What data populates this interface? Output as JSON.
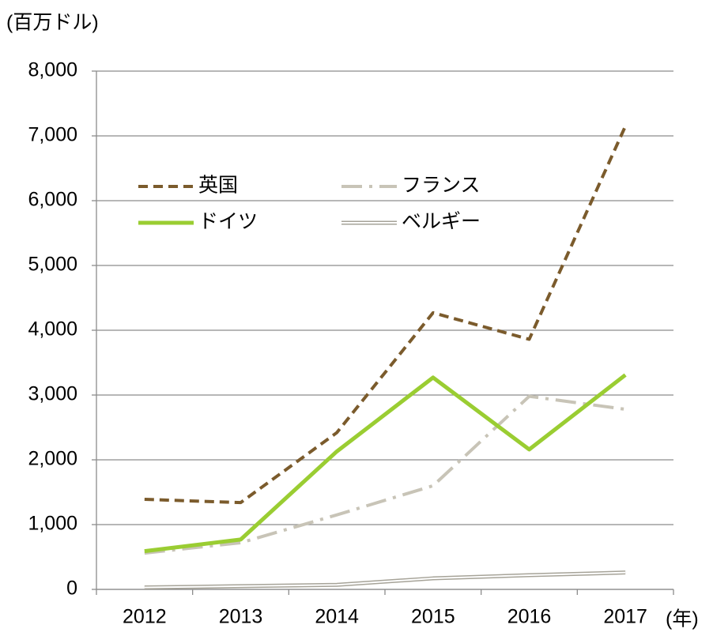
{
  "chart_data": {
    "type": "line",
    "y_axis_label": "(百万ドル)",
    "x_axis_label": "(年)",
    "categories": [
      "2012",
      "2013",
      "2014",
      "2015",
      "2016",
      "2017"
    ],
    "series": [
      {
        "name": "英国",
        "color": "#7b5b2c",
        "style": "dashed",
        "values": [
          1390,
          1340,
          2420,
          4270,
          3860,
          7150
        ]
      },
      {
        "name": "フランス",
        "color": "#c8c4b7",
        "style": "dash-dot",
        "values": [
          560,
          720,
          1150,
          1600,
          2980,
          2780
        ]
      },
      {
        "name": "ドイツ",
        "color": "#9acd32",
        "style": "solid",
        "values": [
          590,
          770,
          2130,
          3270,
          2160,
          3310
        ]
      },
      {
        "name": "ベルギー",
        "color": "#a6a398",
        "style": "double",
        "values": [
          30,
          50,
          70,
          170,
          220,
          260
        ]
      }
    ],
    "ylim": [
      0,
      8000
    ],
    "yticks": [
      0,
      {
        "value": 1000,
        "label": "1,000"
      },
      {
        "value": 2000,
        "label": "2,000"
      },
      {
        "value": 3000,
        "label": "3,000"
      },
      {
        "value": 4000,
        "label": "4,000"
      },
      {
        "value": 5000,
        "label": "5,000"
      },
      {
        "value": 6000,
        "label": "6,000"
      },
      {
        "value": 7000,
        "label": "7,000"
      },
      {
        "value": 8000,
        "label": "8,000"
      }
    ],
    "grid": true,
    "legend": "upper left"
  }
}
